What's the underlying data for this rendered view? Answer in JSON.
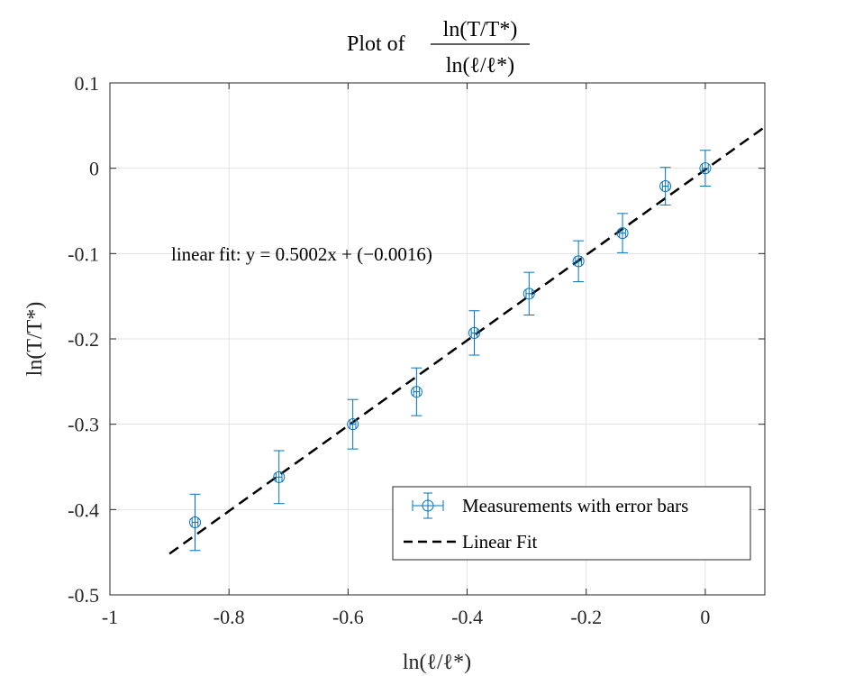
{
  "chart_data": {
    "type": "scatter",
    "title_prefix": "Plot of",
    "title_numerator": "ln(T/T*)",
    "title_denominator": "ln(ℓ/ℓ*)",
    "xlabel": "ln(ℓ/ℓ*)",
    "ylabel": "ln(T/T*)",
    "xlim": [
      -1,
      0.1
    ],
    "ylim": [
      -0.5,
      0.1
    ],
    "xticks": [
      -1,
      -0.8,
      -0.6,
      -0.4,
      -0.2,
      0
    ],
    "xtick_labels": [
      "-1",
      "-0.8",
      "-0.6",
      "-0.4",
      "-0.2",
      "0"
    ],
    "yticks": [
      -0.5,
      -0.4,
      -0.3,
      -0.2,
      -0.1,
      0,
      0.1
    ],
    "ytick_labels": [
      "-0.5",
      "-0.4",
      "-0.3",
      "-0.2",
      "-0.1",
      "0",
      "0.1"
    ],
    "grid": true,
    "series": [
      {
        "name": "Measurements with error bars",
        "color": "#0072BD",
        "marker": "circle",
        "x": [
          -0.857,
          -0.716,
          -0.592,
          -0.485,
          -0.388,
          -0.296,
          -0.213,
          -0.139,
          -0.067,
          0.0
        ],
        "y": [
          -0.415,
          -0.362,
          -0.3,
          -0.262,
          -0.193,
          -0.147,
          -0.109,
          -0.076,
          -0.021,
          0.0
        ],
        "yerr": [
          0.033,
          0.031,
          0.029,
          0.028,
          0.026,
          0.025,
          0.024,
          0.023,
          0.022,
          0.021
        ],
        "xerr": [
          0.005,
          0.005,
          0.005,
          0.005,
          0.005,
          0.005,
          0.005,
          0.005,
          0.005,
          0.005
        ]
      },
      {
        "name": "Linear Fit",
        "color": "#000000",
        "style": "dashed",
        "slope": 0.5002,
        "intercept": -0.0016,
        "x_range": [
          -0.9,
          0.1
        ]
      }
    ],
    "annotation": "linear fit: y = 0.5002x + (−0.0016)",
    "legend_position": "bottom-right"
  }
}
